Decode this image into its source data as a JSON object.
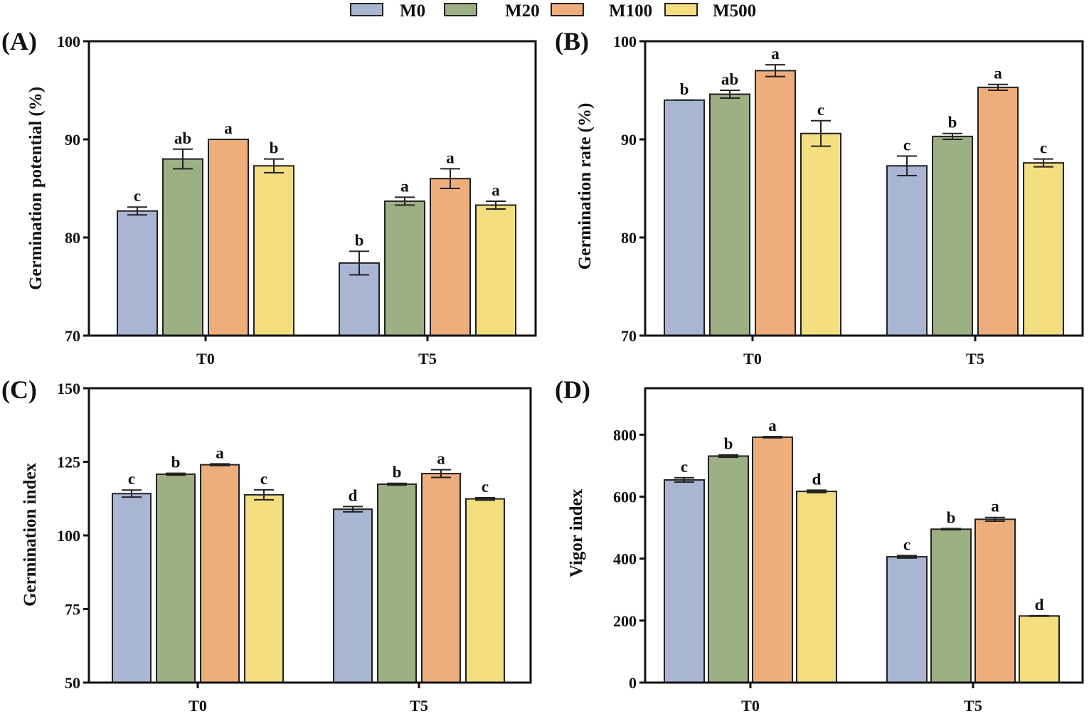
{
  "legend": [
    {
      "name": "M0",
      "color": "#a8b6d4"
    },
    {
      "name": "M20",
      "color": "#9cb083"
    },
    {
      "name": "M100",
      "color": "#eeae7c"
    },
    {
      "name": "M500",
      "color": "#f3df80"
    }
  ],
  "chart_data": [
    {
      "panel": "(A)",
      "type": "bar",
      "ylabel": "Germination potential (%)",
      "ylim": [
        70,
        100
      ],
      "yticks": [
        70,
        80,
        90,
        100
      ],
      "categories": [
        "T0",
        "T5"
      ],
      "series": [
        {
          "name": "M0",
          "values": [
            82.7,
            77.4
          ],
          "errors": [
            0.4,
            1.2
          ],
          "letters": [
            "c",
            "b"
          ]
        },
        {
          "name": "M20",
          "values": [
            88.0,
            83.7
          ],
          "errors": [
            1.0,
            0.4
          ],
          "letters": [
            "ab",
            "a"
          ]
        },
        {
          "name": "M100",
          "values": [
            90.0,
            86.0
          ],
          "errors": [
            0.0,
            1.0
          ],
          "letters": [
            "a",
            "a"
          ]
        },
        {
          "name": "M500",
          "values": [
            87.3,
            83.3
          ],
          "errors": [
            0.7,
            0.4
          ],
          "letters": [
            "b",
            "a"
          ]
        }
      ]
    },
    {
      "panel": "(B)",
      "type": "bar",
      "ylabel": "Germination rate (%)",
      "ylim": [
        70,
        100
      ],
      "yticks": [
        70,
        80,
        90,
        100
      ],
      "categories": [
        "T0",
        "T5"
      ],
      "series": [
        {
          "name": "M0",
          "values": [
            94.0,
            87.3
          ],
          "errors": [
            0.0,
            1.0
          ],
          "letters": [
            "b",
            "c"
          ]
        },
        {
          "name": "M20",
          "values": [
            94.6,
            90.3
          ],
          "errors": [
            0.4,
            0.3
          ],
          "letters": [
            "ab",
            "b"
          ]
        },
        {
          "name": "M100",
          "values": [
            97.0,
            95.3
          ],
          "errors": [
            0.6,
            0.3
          ],
          "letters": [
            "a",
            "a"
          ]
        },
        {
          "name": "M500",
          "values": [
            90.6,
            87.6
          ],
          "errors": [
            1.3,
            0.4
          ],
          "letters": [
            "c",
            "c"
          ]
        }
      ]
    },
    {
      "panel": "(C)",
      "type": "bar",
      "ylabel": "Germination index",
      "ylim": [
        50,
        150
      ],
      "yticks": [
        50,
        75,
        100,
        125,
        150
      ],
      "categories": [
        "T0",
        "T5"
      ],
      "series": [
        {
          "name": "M0",
          "values": [
            114.2,
            108.9
          ],
          "errors": [
            1.2,
            0.9
          ],
          "letters": [
            "c",
            "d"
          ]
        },
        {
          "name": "M20",
          "values": [
            120.8,
            117.4
          ],
          "errors": [
            0.3,
            0.3
          ],
          "letters": [
            "b",
            "b"
          ]
        },
        {
          "name": "M100",
          "values": [
            124.0,
            121.0
          ],
          "errors": [
            0.3,
            1.3
          ],
          "letters": [
            "a",
            "a"
          ]
        },
        {
          "name": "M500",
          "values": [
            113.8,
            112.4
          ],
          "errors": [
            1.7,
            0.4
          ],
          "letters": [
            "c",
            "c"
          ]
        }
      ]
    },
    {
      "panel": "(D)",
      "type": "bar",
      "ylabel": "Vigor index",
      "ylim": [
        0,
        950
      ],
      "yticks": [
        0,
        200,
        400,
        600,
        800
      ],
      "categories": [
        "T0",
        "T5"
      ],
      "series": [
        {
          "name": "M0",
          "values": [
            654,
            406
          ],
          "errors": [
            7,
            4
          ],
          "letters": [
            "c",
            "c"
          ]
        },
        {
          "name": "M20",
          "values": [
            731,
            495
          ],
          "errors": [
            4,
            2
          ],
          "letters": [
            "b",
            "b"
          ]
        },
        {
          "name": "M100",
          "values": [
            792,
            527
          ],
          "errors": [
            2,
            6
          ],
          "letters": [
            "a",
            "a"
          ]
        },
        {
          "name": "M500",
          "values": [
            617,
            215
          ],
          "errors": [
            4,
            1
          ],
          "letters": [
            "d",
            "d"
          ]
        }
      ]
    }
  ]
}
